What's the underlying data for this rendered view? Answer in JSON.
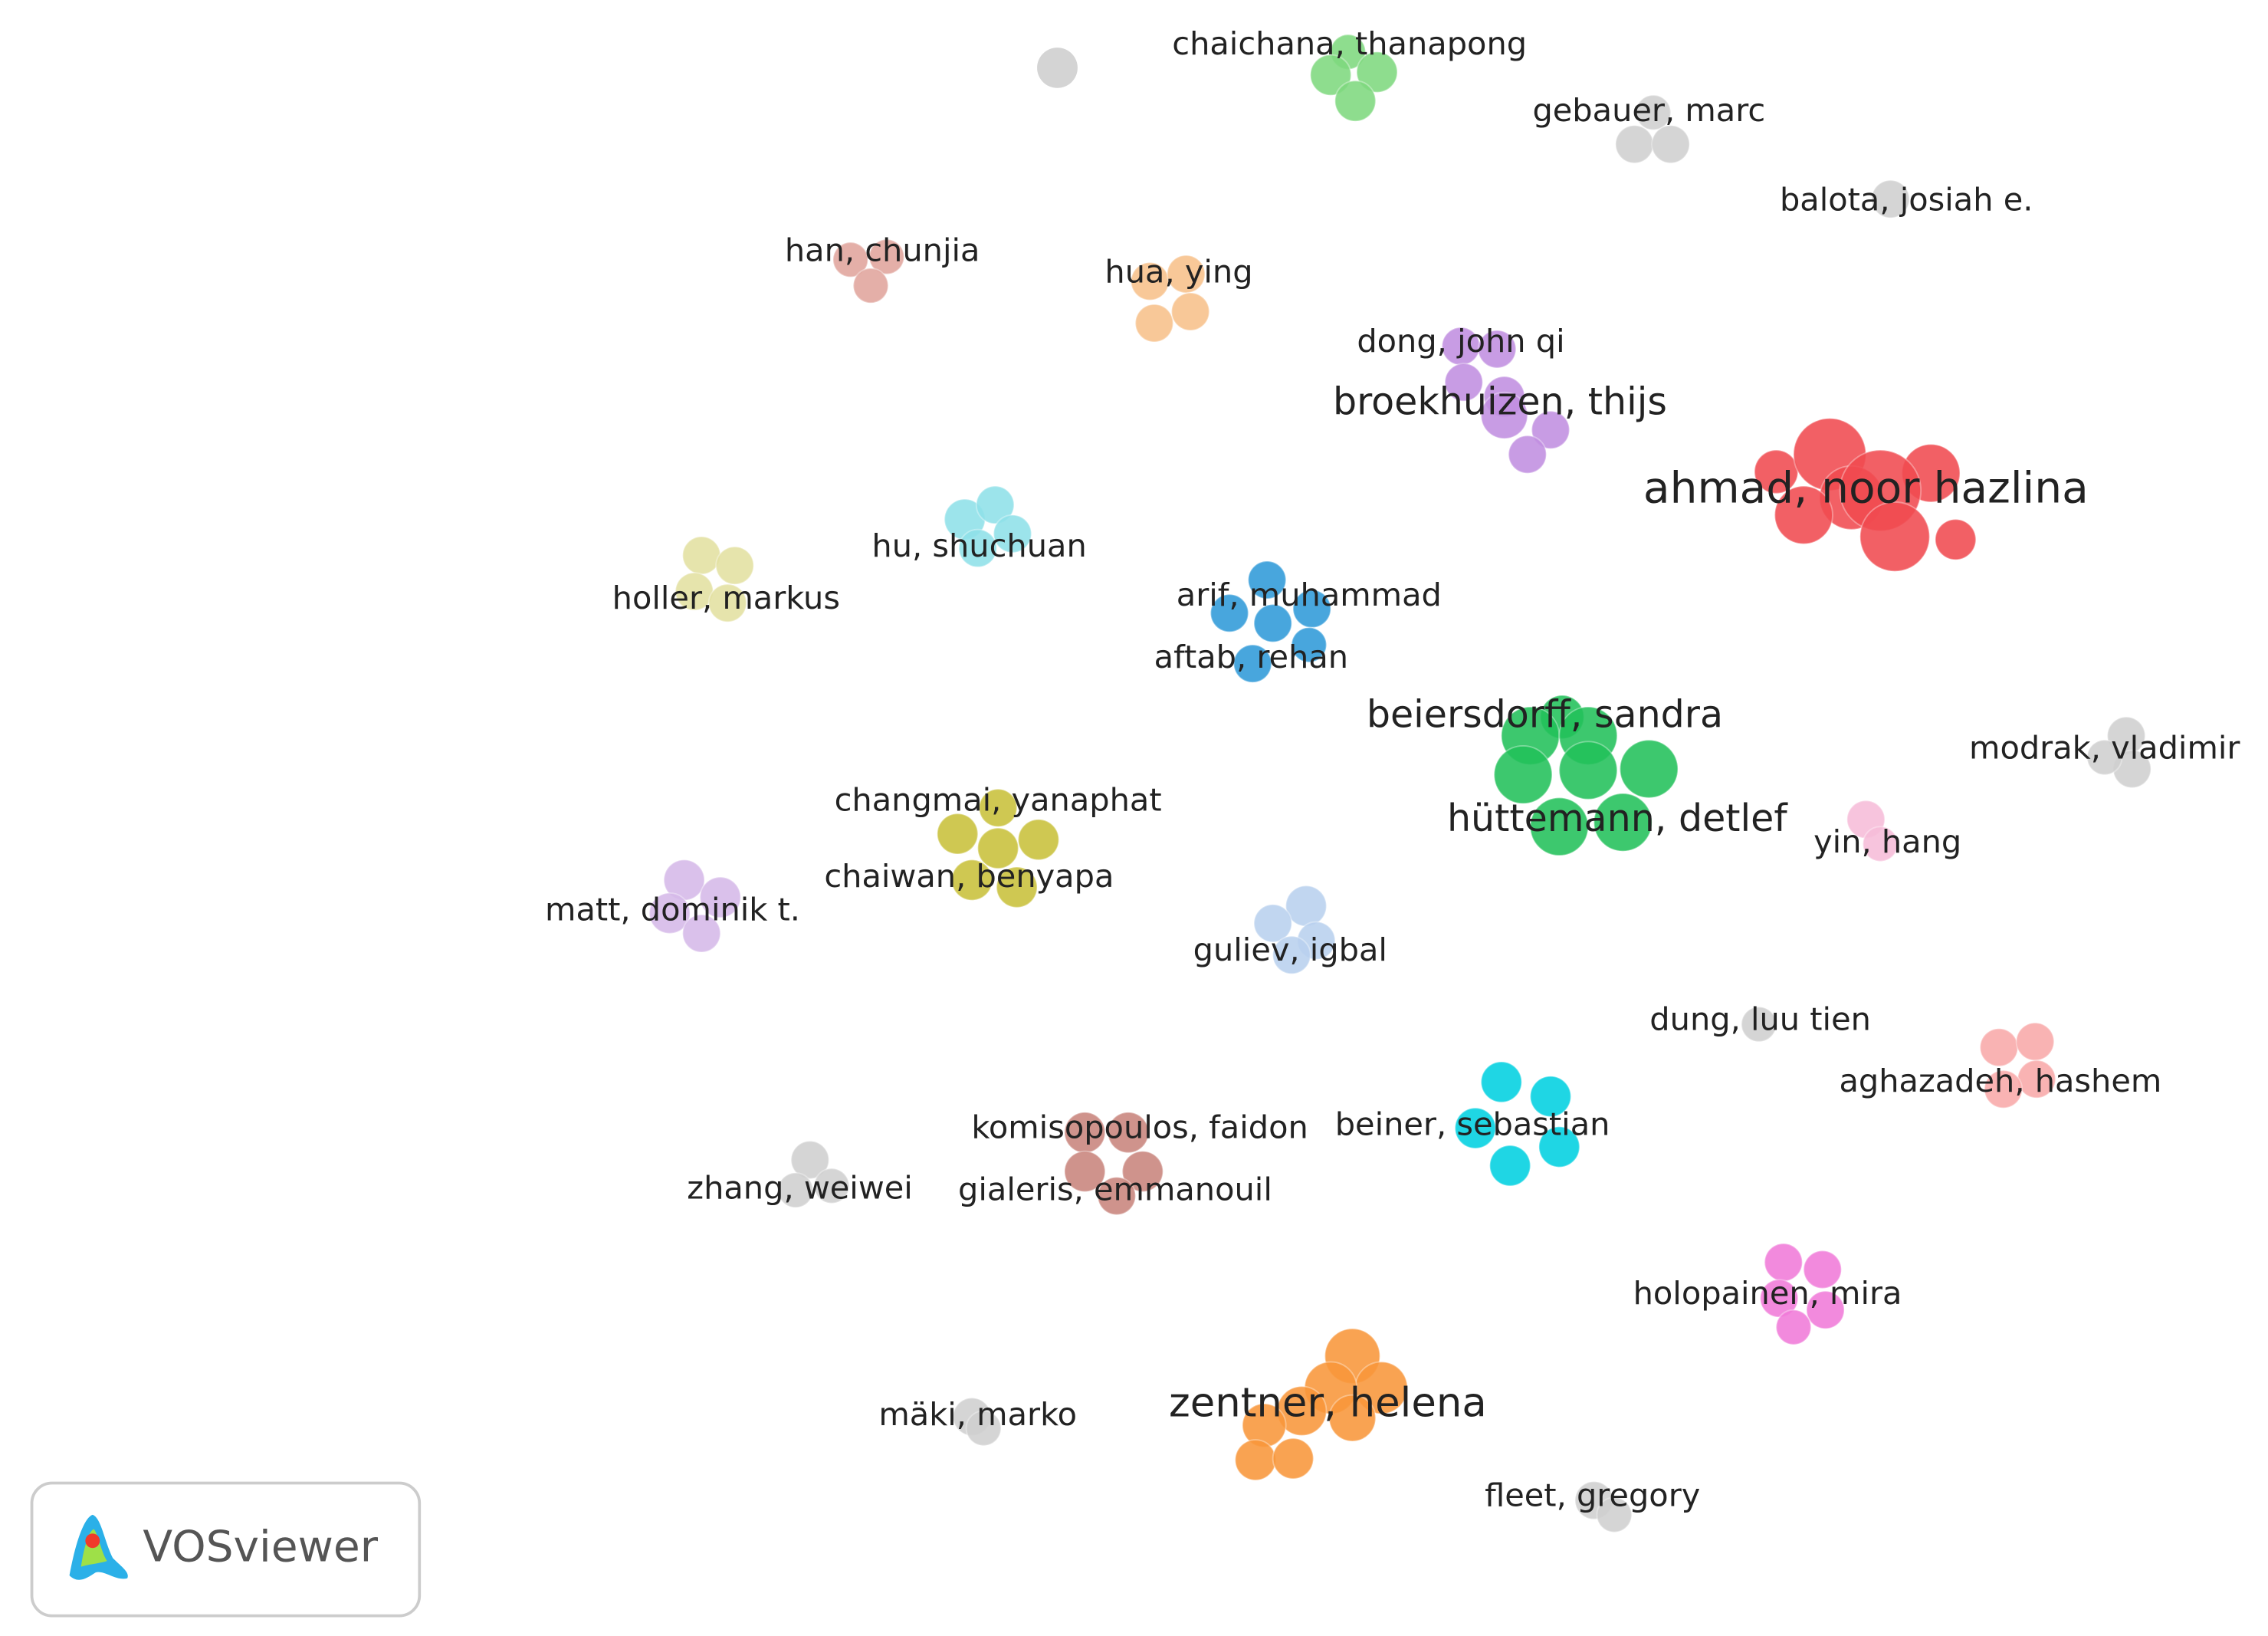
{
  "nodes": [
    {
      "label": "chaichana, thanapong"
    },
    {
      "label": "gebauer, marc"
    },
    {
      "label": "balota, josiah e."
    },
    {
      "label": "han, chunjia"
    },
    {
      "label": "hua, ying"
    },
    {
      "label": "dong, john qi"
    },
    {
      "label": "broekhuizen, thijs"
    },
    {
      "label": "ahmad, noor hazlina"
    },
    {
      "label": "hu, shuchuan"
    },
    {
      "label": "holler, markus"
    },
    {
      "label": "arif, muhammad"
    },
    {
      "label": "aftab, rehan"
    },
    {
      "label": "beiersdorff, sandra"
    },
    {
      "label": "hüttemann, detlef"
    },
    {
      "label": "modrak, vladimir"
    },
    {
      "label": "yin, hang"
    },
    {
      "label": "changmai, yanaphat"
    },
    {
      "label": "chaiwan, benyapa"
    },
    {
      "label": "matt, dominik t."
    },
    {
      "label": "guliev, igbal"
    },
    {
      "label": "dung, luu tien"
    },
    {
      "label": "aghazadeh, hashem"
    },
    {
      "label": "komisopoulos, faidon"
    },
    {
      "label": "gialeris, emmanouil"
    },
    {
      "label": "beiner, sebastian"
    },
    {
      "label": "zhang, weiwei"
    },
    {
      "label": "holopainen, mira"
    },
    {
      "label": "mäki, marko"
    },
    {
      "label": "zentner, helena"
    },
    {
      "label": "fleet, gregory"
    }
  ],
  "logo": {
    "text": "VOSviewer"
  }
}
